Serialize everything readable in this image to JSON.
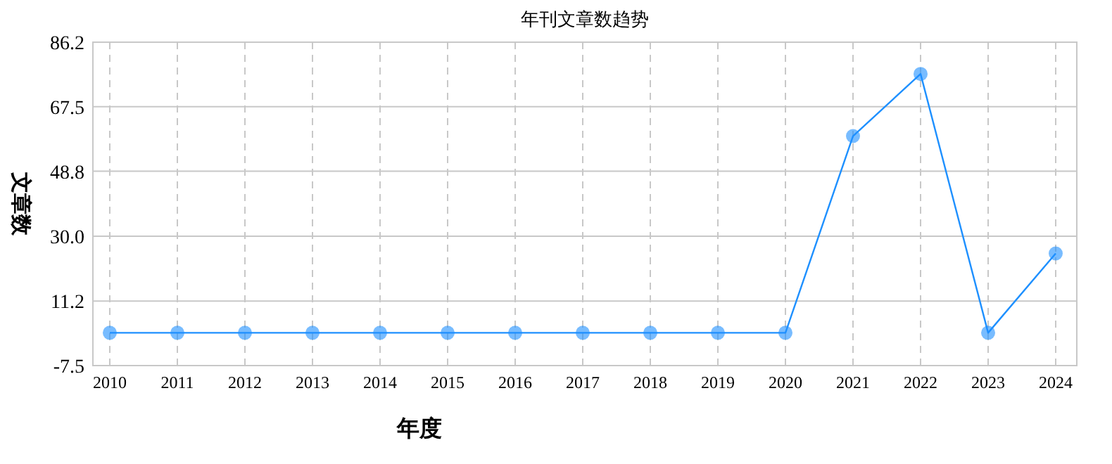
{
  "chart_data": {
    "type": "line",
    "title": "年刊文章数趋势",
    "xlabel": "年度",
    "ylabel": "文章数",
    "categories": [
      "2010",
      "2011",
      "2012",
      "2013",
      "2014",
      "2015",
      "2016",
      "2017",
      "2018",
      "2019",
      "2020",
      "2021",
      "2022",
      "2023",
      "2024"
    ],
    "values": [
      2,
      2,
      2,
      2,
      2,
      2,
      2,
      2,
      2,
      2,
      2,
      59,
      77,
      2,
      25
    ],
    "color": "#1e90ff",
    "ylim": [
      -7.5,
      86.2
    ],
    "yticks": [
      -7.5,
      11.2,
      {
        "value": 30,
        "label": "30.0"
      },
      48.8,
      67.5,
      86.2
    ],
    "grid": true,
    "marker": "circle",
    "line_style": "solid"
  }
}
